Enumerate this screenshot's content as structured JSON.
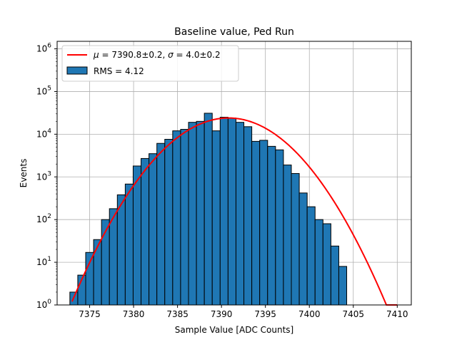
{
  "chart_data": {
    "type": "bar",
    "title": "Baseline value, Ped Run",
    "xlabel": "Sample Value [ADC Counts]",
    "ylabel": "Events",
    "xlim": [
      7371.3,
      7411.6
    ],
    "ylim": [
      1,
      1500000
    ],
    "yscale": "log",
    "grid": true,
    "legend_position": "upper-left",
    "x_ticks": [
      7375,
      7380,
      7385,
      7390,
      7395,
      7400,
      7405,
      7410
    ],
    "y_ticks": [
      {
        "value": 1,
        "base": "10",
        "exp": "0"
      },
      {
        "value": 10,
        "base": "10",
        "exp": "1"
      },
      {
        "value": 100,
        "base": "10",
        "exp": "2"
      },
      {
        "value": 1000,
        "base": "10",
        "exp": "3"
      },
      {
        "value": 10000,
        "base": "10",
        "exp": "4"
      },
      {
        "value": 100000,
        "base": "10",
        "exp": "5"
      },
      {
        "value": 1000000,
        "base": "10",
        "exp": "6"
      }
    ],
    "bin_width": 0.9,
    "bins": [
      {
        "x": 7373.2,
        "count": 2
      },
      {
        "x": 7374.1,
        "count": 5
      },
      {
        "x": 7375.0,
        "count": 17
      },
      {
        "x": 7375.9,
        "count": 34
      },
      {
        "x": 7376.8,
        "count": 100
      },
      {
        "x": 7377.7,
        "count": 180
      },
      {
        "x": 7378.6,
        "count": 380
      },
      {
        "x": 7379.5,
        "count": 680
      },
      {
        "x": 7380.4,
        "count": 1800
      },
      {
        "x": 7381.3,
        "count": 2700
      },
      {
        "x": 7382.2,
        "count": 3500
      },
      {
        "x": 7383.1,
        "count": 6100
      },
      {
        "x": 7384.0,
        "count": 7600
      },
      {
        "x": 7384.9,
        "count": 12000
      },
      {
        "x": 7385.8,
        "count": 13000
      },
      {
        "x": 7386.7,
        "count": 19000
      },
      {
        "x": 7387.6,
        "count": 20000
      },
      {
        "x": 7388.5,
        "count": 31000
      },
      {
        "x": 7389.4,
        "count": 12000
      },
      {
        "x": 7390.3,
        "count": 25000
      },
      {
        "x": 7391.2,
        "count": 24000
      },
      {
        "x": 7392.1,
        "count": 19000
      },
      {
        "x": 7393.0,
        "count": 15000
      },
      {
        "x": 7393.9,
        "count": 6800
      },
      {
        "x": 7394.8,
        "count": 7200
      },
      {
        "x": 7395.7,
        "count": 5200
      },
      {
        "x": 7396.6,
        "count": 4300
      },
      {
        "x": 7397.5,
        "count": 1900
      },
      {
        "x": 7398.4,
        "count": 1200
      },
      {
        "x": 7399.3,
        "count": 420
      },
      {
        "x": 7400.2,
        "count": 200
      },
      {
        "x": 7401.1,
        "count": 100
      },
      {
        "x": 7402.0,
        "count": 80
      },
      {
        "x": 7402.9,
        "count": 24
      },
      {
        "x": 7403.8,
        "count": 8
      }
    ],
    "fit": {
      "mu": 7390.8,
      "sigma": 4.0,
      "amplitude": 24000,
      "x_range": [
        7373.0,
        7410.0
      ],
      "color": "#ff0000"
    },
    "bar_color": "#1f77b4",
    "bar_edge_color": "#000000",
    "series": [
      {
        "name": "fit",
        "label_parts": [
          "μ",
          " = 7390.8±0.2, ",
          "σ",
          " = 4.0±0.2"
        ]
      },
      {
        "name": "histogram",
        "label": "RMS = 4.12"
      }
    ]
  }
}
